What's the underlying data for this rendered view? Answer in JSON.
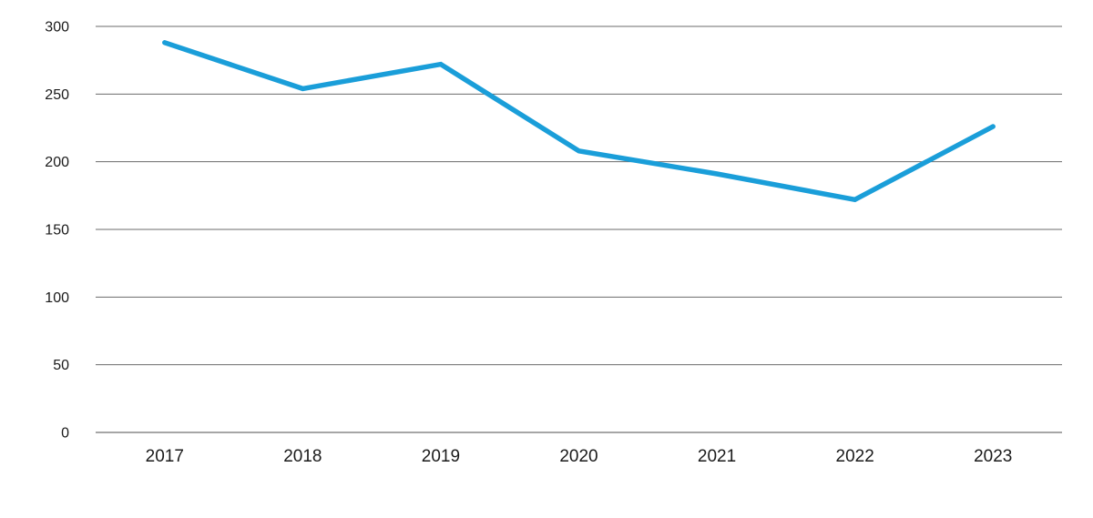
{
  "chart_data": {
    "type": "line",
    "categories": [
      "2017",
      "2018",
      "2019",
      "2020",
      "2021",
      "2022",
      "2023"
    ],
    "values": [
      288,
      254,
      272,
      208,
      191,
      172,
      226
    ],
    "title": "",
    "xlabel": "",
    "ylabel": "",
    "ylim": [
      0,
      300
    ],
    "yticks": [
      0,
      50,
      100,
      150,
      200,
      250,
      300
    ],
    "grid": "horizontal",
    "legend": "none",
    "colors": {
      "line": "#1a9ed9",
      "gridline": "#6b6b6b",
      "baseline": "#4d4d4d",
      "text": "#1a1a1a",
      "background": "#ffffff"
    }
  }
}
